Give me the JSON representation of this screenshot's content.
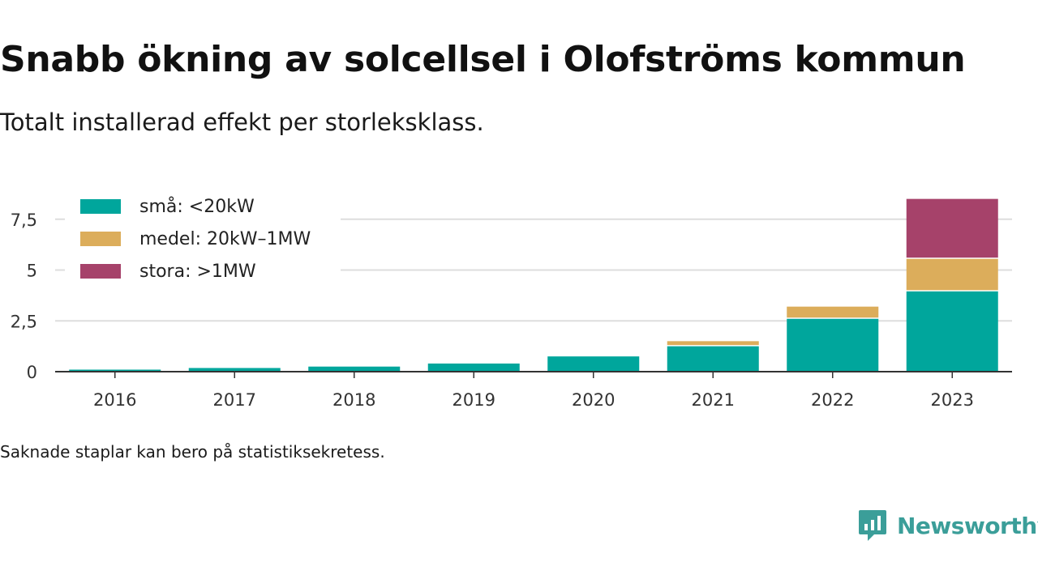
{
  "header": {
    "title": "Snabb ökning av solcellsel i Olofströms kommun",
    "subtitle": "Totalt installerad effekt per storleksklass."
  },
  "footnote": "Saknade staplar kan bero på statistiksekretess.",
  "brand": {
    "name": "Newsworthy",
    "icon": "newsworthy-logo-icon",
    "color": "#3b9e99"
  },
  "chart_data": {
    "type": "bar",
    "stacked": true,
    "categories": [
      "2016",
      "2017",
      "2018",
      "2019",
      "2020",
      "2021",
      "2022",
      "2023"
    ],
    "series": [
      {
        "name": "små: <20kW",
        "color": "#00a69c",
        "values": [
          0.1,
          0.18,
          0.25,
          0.4,
          0.75,
          1.25,
          2.6,
          3.95
        ]
      },
      {
        "name": "medel: 20kW–1MW",
        "color": "#dcad5b",
        "values": [
          0,
          0,
          0,
          0,
          0,
          0.25,
          0.6,
          1.6
        ]
      },
      {
        "name": "stora: >1MW",
        "color": "#a6426a",
        "values": [
          0,
          0,
          0,
          0,
          0,
          0,
          0,
          2.95
        ]
      }
    ],
    "yticks": [
      "0",
      "2,5",
      "5",
      "7,5"
    ],
    "ytick_values": [
      0,
      2.5,
      5,
      7.5
    ],
    "ylim": [
      0,
      8.7
    ],
    "grid": true,
    "legend_position": "top-left",
    "xlabel": "",
    "ylabel": ""
  }
}
